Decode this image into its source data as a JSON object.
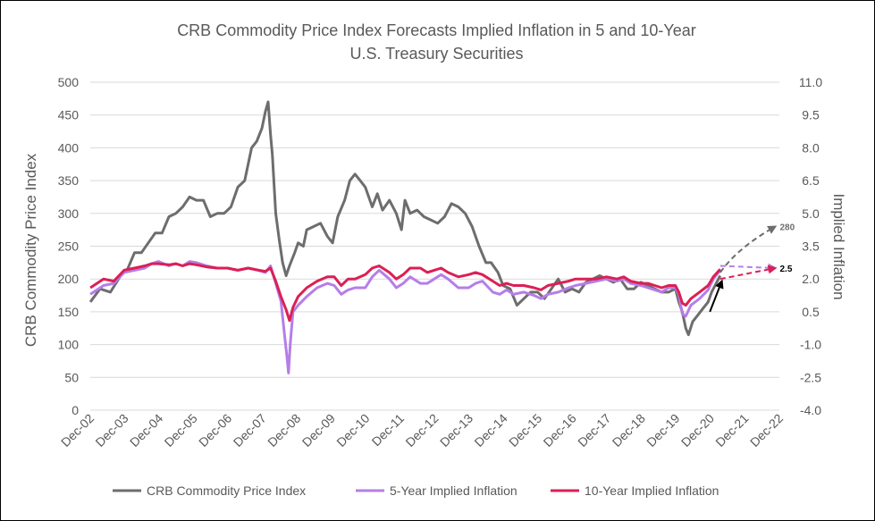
{
  "chart_data": {
    "type": "line",
    "title": "CRB Commodity Price Index Forecasts Implied Inflation in 5 and 10-Year",
    "subtitle": "U.S. Treasury Securities",
    "ylabel": "CRB Commodity Price Index",
    "y2label": "Implied Inflation",
    "ylim": [
      0,
      500
    ],
    "y2lim": [
      -4.0,
      11.0
    ],
    "xlim": [
      2002.917,
      2022.917
    ],
    "y_ticks": [
      "0",
      "50",
      "100",
      "150",
      "200",
      "250",
      "300",
      "350",
      "400",
      "450",
      "500"
    ],
    "y2_ticks": [
      "-4.0",
      "-2.5",
      "-1.0",
      "0.5",
      "2.0",
      "3.5",
      "5.0",
      "6.5",
      "8.0",
      "9.5",
      "11.0"
    ],
    "x_ticks": [
      "Dec-02",
      "Dec-03",
      "Dec-04",
      "Dec-05",
      "Dec-06",
      "Dec-07",
      "Dec-08",
      "Dec-09",
      "Dec-10",
      "Dec-11",
      "Dec-12",
      "Dec-13",
      "Dec-14",
      "Dec-15",
      "Dec-16",
      "Dec-17",
      "Dec-18",
      "Dec-19",
      "Dec-20",
      "Dec-21",
      "Dec-22"
    ],
    "legend_position": "bottom",
    "grid": "horizontal",
    "series": [
      {
        "name": "CRB Commodity Price Index",
        "axis": "left",
        "color": "#6d6d6d",
        "points": [
          [
            2002.92,
            165
          ],
          [
            2003.2,
            185
          ],
          [
            2003.5,
            180
          ],
          [
            2003.8,
            205
          ],
          [
            2004.0,
            215
          ],
          [
            2004.2,
            240
          ],
          [
            2004.4,
            240
          ],
          [
            2004.6,
            255
          ],
          [
            2004.8,
            270
          ],
          [
            2005.0,
            270
          ],
          [
            2005.2,
            295
          ],
          [
            2005.4,
            300
          ],
          [
            2005.6,
            310
          ],
          [
            2005.8,
            325
          ],
          [
            2006.0,
            320
          ],
          [
            2006.2,
            320
          ],
          [
            2006.4,
            295
          ],
          [
            2006.6,
            300
          ],
          [
            2006.8,
            300
          ],
          [
            2007.0,
            310
          ],
          [
            2007.2,
            340
          ],
          [
            2007.4,
            350
          ],
          [
            2007.6,
            400
          ],
          [
            2007.75,
            410
          ],
          [
            2007.9,
            430
          ],
          [
            2008.0,
            455
          ],
          [
            2008.08,
            470
          ],
          [
            2008.15,
            420
          ],
          [
            2008.2,
            390
          ],
          [
            2008.3,
            300
          ],
          [
            2008.4,
            260
          ],
          [
            2008.5,
            225
          ],
          [
            2008.6,
            205
          ],
          [
            2008.7,
            220
          ],
          [
            2008.85,
            240
          ],
          [
            2008.95,
            255
          ],
          [
            2009.1,
            250
          ],
          [
            2009.2,
            275
          ],
          [
            2009.4,
            280
          ],
          [
            2009.6,
            285
          ],
          [
            2009.8,
            265
          ],
          [
            2009.95,
            255
          ],
          [
            2010.1,
            295
          ],
          [
            2010.3,
            320
          ],
          [
            2010.45,
            350
          ],
          [
            2010.6,
            360
          ],
          [
            2010.75,
            350
          ],
          [
            2010.9,
            340
          ],
          [
            2011.1,
            310
          ],
          [
            2011.25,
            330
          ],
          [
            2011.4,
            305
          ],
          [
            2011.6,
            320
          ],
          [
            2011.8,
            300
          ],
          [
            2011.95,
            275
          ],
          [
            2012.05,
            320
          ],
          [
            2012.2,
            300
          ],
          [
            2012.4,
            305
          ],
          [
            2012.6,
            295
          ],
          [
            2012.8,
            290
          ],
          [
            2013.0,
            285
          ],
          [
            2013.2,
            295
          ],
          [
            2013.4,
            315
          ],
          [
            2013.6,
            310
          ],
          [
            2013.8,
            300
          ],
          [
            2014.0,
            280
          ],
          [
            2014.2,
            250
          ],
          [
            2014.4,
            225
          ],
          [
            2014.55,
            225
          ],
          [
            2014.75,
            210
          ],
          [
            2014.9,
            190
          ],
          [
            2015.1,
            185
          ],
          [
            2015.3,
            160
          ],
          [
            2015.5,
            170
          ],
          [
            2015.7,
            180
          ],
          [
            2015.9,
            180
          ],
          [
            2016.1,
            170
          ],
          [
            2016.3,
            185
          ],
          [
            2016.5,
            200
          ],
          [
            2016.7,
            180
          ],
          [
            2016.9,
            185
          ],
          [
            2017.1,
            180
          ],
          [
            2017.3,
            195
          ],
          [
            2017.5,
            200
          ],
          [
            2017.7,
            205
          ],
          [
            2017.9,
            200
          ],
          [
            2018.1,
            195
          ],
          [
            2018.3,
            200
          ],
          [
            2018.5,
            185
          ],
          [
            2018.7,
            185
          ],
          [
            2018.9,
            195
          ],
          [
            2019.1,
            190
          ],
          [
            2019.3,
            185
          ],
          [
            2019.5,
            180
          ],
          [
            2019.7,
            180
          ],
          [
            2019.9,
            185
          ],
          [
            2020.0,
            165
          ],
          [
            2020.1,
            150
          ],
          [
            2020.2,
            125
          ],
          [
            2020.28,
            115
          ],
          [
            2020.4,
            135
          ],
          [
            2020.55,
            145
          ],
          [
            2020.7,
            155
          ],
          [
            2020.85,
            165
          ],
          [
            2020.95,
            180
          ],
          [
            2021.05,
            190
          ],
          [
            2021.2,
            205
          ]
        ]
      },
      {
        "name": "5-Year Implied Inflation",
        "axis": "right",
        "color": "#b57ee8",
        "points": [
          [
            2002.92,
            1.3
          ],
          [
            2003.3,
            1.7
          ],
          [
            2003.6,
            1.8
          ],
          [
            2003.9,
            2.3
          ],
          [
            2004.2,
            2.4
          ],
          [
            2004.5,
            2.5
          ],
          [
            2004.7,
            2.7
          ],
          [
            2004.9,
            2.8
          ],
          [
            2005.2,
            2.6
          ],
          [
            2005.4,
            2.7
          ],
          [
            2005.6,
            2.6
          ],
          [
            2005.8,
            2.8
          ],
          [
            2006.0,
            2.75
          ],
          [
            2006.3,
            2.6
          ],
          [
            2006.6,
            2.5
          ],
          [
            2006.9,
            2.5
          ],
          [
            2007.2,
            2.4
          ],
          [
            2007.5,
            2.5
          ],
          [
            2007.8,
            2.4
          ],
          [
            2008.0,
            2.3
          ],
          [
            2008.15,
            2.6
          ],
          [
            2008.3,
            1.8
          ],
          [
            2008.45,
            1.0
          ],
          [
            2008.55,
            -0.5
          ],
          [
            2008.62,
            -1.5
          ],
          [
            2008.67,
            -2.3
          ],
          [
            2008.72,
            -1.0
          ],
          [
            2008.8,
            0.5
          ],
          [
            2008.95,
            0.8
          ],
          [
            2009.2,
            1.2
          ],
          [
            2009.5,
            1.6
          ],
          [
            2009.8,
            1.8
          ],
          [
            2010.0,
            1.7
          ],
          [
            2010.2,
            1.3
          ],
          [
            2010.4,
            1.5
          ],
          [
            2010.6,
            1.6
          ],
          [
            2010.9,
            1.6
          ],
          [
            2011.1,
            2.1
          ],
          [
            2011.3,
            2.4
          ],
          [
            2011.6,
            2.0
          ],
          [
            2011.8,
            1.6
          ],
          [
            2012.0,
            1.8
          ],
          [
            2012.2,
            2.1
          ],
          [
            2012.5,
            1.8
          ],
          [
            2012.7,
            1.8
          ],
          [
            2012.9,
            2.0
          ],
          [
            2013.1,
            2.2
          ],
          [
            2013.3,
            2.0
          ],
          [
            2013.6,
            1.6
          ],
          [
            2013.9,
            1.6
          ],
          [
            2014.1,
            1.8
          ],
          [
            2014.3,
            1.9
          ],
          [
            2014.6,
            1.4
          ],
          [
            2014.8,
            1.3
          ],
          [
            2015.0,
            1.5
          ],
          [
            2015.2,
            1.3
          ],
          [
            2015.5,
            1.4
          ],
          [
            2015.8,
            1.25
          ],
          [
            2016.0,
            1.1
          ],
          [
            2016.2,
            1.3
          ],
          [
            2016.5,
            1.4
          ],
          [
            2016.8,
            1.6
          ],
          [
            2017.0,
            1.7
          ],
          [
            2017.3,
            1.8
          ],
          [
            2017.6,
            1.9
          ],
          [
            2017.9,
            2.0
          ],
          [
            2018.2,
            1.9
          ],
          [
            2018.4,
            2.0
          ],
          [
            2018.6,
            1.8
          ],
          [
            2018.9,
            1.7
          ],
          [
            2019.1,
            1.6
          ],
          [
            2019.3,
            1.5
          ],
          [
            2019.5,
            1.4
          ],
          [
            2019.7,
            1.6
          ],
          [
            2019.9,
            1.6
          ],
          [
            2020.0,
            1.3
          ],
          [
            2020.1,
            0.4
          ],
          [
            2020.2,
            0.3
          ],
          [
            2020.35,
            0.8
          ],
          [
            2020.6,
            1.1
          ],
          [
            2020.85,
            1.5
          ],
          [
            2021.0,
            2.0
          ],
          [
            2021.2,
            2.4
          ]
        ]
      },
      {
        "name": "10-Year Implied Inflation",
        "axis": "right",
        "color": "#dc1f55",
        "points": [
          [
            2002.92,
            1.6
          ],
          [
            2003.3,
            2.0
          ],
          [
            2003.6,
            1.9
          ],
          [
            2003.9,
            2.4
          ],
          [
            2004.2,
            2.5
          ],
          [
            2004.5,
            2.6
          ],
          [
            2004.7,
            2.7
          ],
          [
            2004.9,
            2.7
          ],
          [
            2005.2,
            2.65
          ],
          [
            2005.4,
            2.7
          ],
          [
            2005.6,
            2.6
          ],
          [
            2005.8,
            2.7
          ],
          [
            2006.0,
            2.65
          ],
          [
            2006.3,
            2.55
          ],
          [
            2006.6,
            2.5
          ],
          [
            2006.9,
            2.5
          ],
          [
            2007.2,
            2.4
          ],
          [
            2007.5,
            2.5
          ],
          [
            2007.8,
            2.4
          ],
          [
            2008.0,
            2.35
          ],
          [
            2008.15,
            2.5
          ],
          [
            2008.3,
            1.9
          ],
          [
            2008.45,
            1.2
          ],
          [
            2008.6,
            0.6
          ],
          [
            2008.7,
            0.1
          ],
          [
            2008.8,
            0.7
          ],
          [
            2008.95,
            1.2
          ],
          [
            2009.2,
            1.6
          ],
          [
            2009.5,
            1.9
          ],
          [
            2009.8,
            2.1
          ],
          [
            2010.0,
            2.1
          ],
          [
            2010.2,
            1.7
          ],
          [
            2010.4,
            2.0
          ],
          [
            2010.6,
            2.0
          ],
          [
            2010.9,
            2.2
          ],
          [
            2011.1,
            2.5
          ],
          [
            2011.3,
            2.6
          ],
          [
            2011.6,
            2.3
          ],
          [
            2011.8,
            2.0
          ],
          [
            2012.0,
            2.2
          ],
          [
            2012.2,
            2.5
          ],
          [
            2012.5,
            2.5
          ],
          [
            2012.7,
            2.3
          ],
          [
            2012.9,
            2.4
          ],
          [
            2013.1,
            2.5
          ],
          [
            2013.3,
            2.3
          ],
          [
            2013.6,
            2.1
          ],
          [
            2013.9,
            2.2
          ],
          [
            2014.1,
            2.3
          ],
          [
            2014.3,
            2.2
          ],
          [
            2014.6,
            1.9
          ],
          [
            2014.8,
            1.7
          ],
          [
            2015.0,
            1.8
          ],
          [
            2015.2,
            1.7
          ],
          [
            2015.5,
            1.7
          ],
          [
            2015.8,
            1.6
          ],
          [
            2016.0,
            1.5
          ],
          [
            2016.2,
            1.7
          ],
          [
            2016.5,
            1.8
          ],
          [
            2016.8,
            1.9
          ],
          [
            2017.0,
            2.0
          ],
          [
            2017.3,
            2.0
          ],
          [
            2017.6,
            2.0
          ],
          [
            2017.9,
            2.1
          ],
          [
            2018.2,
            2.0
          ],
          [
            2018.4,
            2.1
          ],
          [
            2018.6,
            1.9
          ],
          [
            2018.9,
            1.8
          ],
          [
            2019.1,
            1.8
          ],
          [
            2019.3,
            1.7
          ],
          [
            2019.5,
            1.6
          ],
          [
            2019.7,
            1.7
          ],
          [
            2019.9,
            1.7
          ],
          [
            2020.0,
            1.4
          ],
          [
            2020.1,
            0.9
          ],
          [
            2020.2,
            0.8
          ],
          [
            2020.35,
            1.1
          ],
          [
            2020.6,
            1.4
          ],
          [
            2020.85,
            1.7
          ],
          [
            2021.0,
            2.1
          ],
          [
            2021.2,
            2.45
          ]
        ]
      }
    ],
    "forecasts": [
      {
        "series": "CRB Commodity Price Index",
        "axis": "left",
        "from": [
          2021.2,
          210
        ],
        "to": [
          2022.8,
          280
        ],
        "color": "#6d6d6d",
        "label": "280"
      },
      {
        "series": "5-Year Implied Inflation",
        "axis": "right",
        "from": [
          2021.2,
          2.6
        ],
        "to": [
          2022.8,
          2.5
        ],
        "color": "#b57ee8",
        "label": ""
      },
      {
        "series": "10-Year Implied Inflation",
        "axis": "right",
        "from": [
          2021.2,
          2.0
        ],
        "to": [
          2022.8,
          2.5
        ],
        "color": "#dc1f55",
        "label": "2.5"
      }
    ],
    "arrow": {
      "from": [
        2020.9,
        150
      ],
      "to": [
        2021.25,
        197
      ]
    }
  }
}
